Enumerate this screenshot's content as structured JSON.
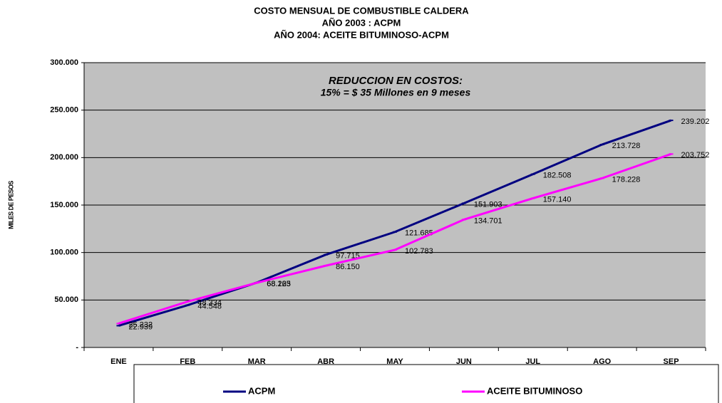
{
  "chart_data": {
    "type": "line",
    "title": [
      "COSTO MENSUAL DE COMBUSTIBLE CALDERA",
      "AÑO 2003 : ACPM",
      "AÑO 2004: ACEITE BITUMINOSO-ACPM"
    ],
    "y_label": "MILES DE PESOS",
    "annotation": [
      "REDUCCION EN COSTOS:",
      "15%  = $ 35 Millones en 9 meses"
    ],
    "annotation_color": "#993366",
    "background": "#c0c0c0",
    "categories": [
      "ENE",
      "FEB",
      "MAR",
      "ABR",
      "MAY",
      "JUN",
      "JUL",
      "AGO",
      "SEP"
    ],
    "series": [
      {
        "name": "ACPM",
        "color": "#000080",
        "values": [
          22939,
          44548,
          68265,
          97715,
          121685,
          151903,
          182508,
          213728,
          239202
        ],
        "value_labels": [
          "22.939",
          "44.548",
          "68.265",
          "97.715",
          "121.685",
          "151.903",
          "182.508",
          "213.728",
          "239.202"
        ]
      },
      {
        "name": "ACEITE BITUMINOSO",
        "color": "#ff00ff",
        "values": [
          25232,
          48334,
          68123,
          86150,
          102783,
          134701,
          157140,
          178228,
          203752
        ],
        "value_labels": [
          "25.232",
          "48.334",
          "68.123",
          "86.150",
          "102.783",
          "134.701",
          "157.140",
          "178.228",
          "203.752"
        ]
      }
    ],
    "ylim": [
      0,
      300000
    ],
    "yticks": [
      {
        "value": 0,
        "label": "-"
      },
      {
        "value": 50000,
        "label": "50.000"
      },
      {
        "value": 100000,
        "label": "100.000"
      },
      {
        "value": 150000,
        "label": "150.000"
      },
      {
        "value": 200000,
        "label": "200.000"
      },
      {
        "value": 250000,
        "label": "250.000"
      },
      {
        "value": 300000,
        "label": "300.000"
      }
    ],
    "grid": true,
    "legend": "bottom"
  }
}
